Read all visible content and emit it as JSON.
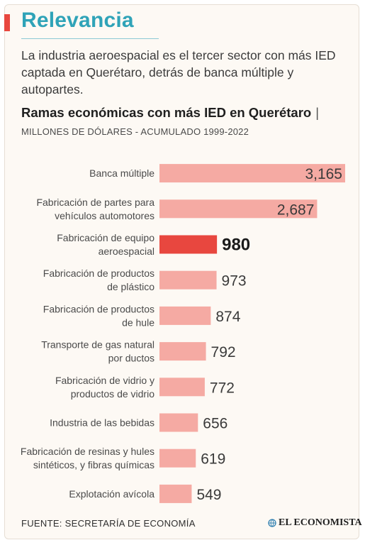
{
  "section_title": "Relevancia",
  "intro": "La industria aeroespacial es el tercer sector con más IED captada en Querétaro, detrás de banca múltiple y autopartes.",
  "chart_title": "Ramas económicas con más IED en Querétaro",
  "chart_title_separator": "|",
  "chart_subtitle": "MILLONES DE DÓLARES - ACUMULADO 1999-2022",
  "footer": {
    "source": "FUENTE: SECRETARÍA DE ECONOMÍA",
    "brand": "EL ECONOMISTA",
    "brand_icon": "globe-icon"
  },
  "colors": {
    "title": "#2fa3b8",
    "accent": "#e8473f",
    "bar": "#f5aaa3",
    "bar_highlight": "#e8473f"
  },
  "chart_data": {
    "type": "bar",
    "orientation": "horizontal",
    "title": "Ramas económicas con más IED en Querétaro",
    "subtitle": "MILLONES DE DÓLARES - ACUMULADO 1999-2022",
    "categories": [
      [
        "Banca múltiple"
      ],
      [
        "Fabricación de partes para",
        "vehículos automotores"
      ],
      [
        "Fabricación de equipo",
        "aeroespacial"
      ],
      [
        "Fabricación de productos",
        "de plástico"
      ],
      [
        "Fabricación de productos",
        "de hule"
      ],
      [
        "Transporte de gas natural",
        "por ductos"
      ],
      [
        "Fabricación de vidrio y",
        "productos de vidrio"
      ],
      [
        "Industria de las bebidas"
      ],
      [
        "Fabricación de resinas y hules",
        "sintéticos, y fibras químicas"
      ],
      [
        "Explotación avícola"
      ]
    ],
    "values": [
      3165,
      2687,
      980,
      973,
      874,
      792,
      772,
      656,
      619,
      549
    ],
    "value_labels": [
      "3,165",
      "2,687",
      "980",
      "973",
      "874",
      "792",
      "772",
      "656",
      "619",
      "549"
    ],
    "highlight_index": 2,
    "xlim": [
      0,
      3165
    ],
    "grid": false,
    "legend": "none"
  }
}
